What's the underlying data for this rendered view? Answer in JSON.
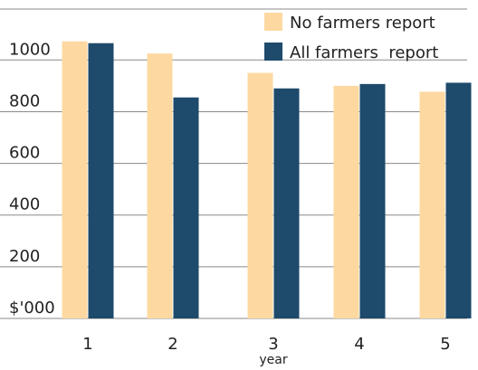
{
  "chart_data": {
    "type": "bar",
    "title": "",
    "xlabel": "year",
    "ylabel": "",
    "ylim": [
      0,
      1200
    ],
    "yticks": [
      0,
      200,
      400,
      600,
      800,
      1000
    ],
    "ytick_labels": [
      "$'000",
      "200",
      "400",
      "600",
      "800",
      "1000"
    ],
    "categories": [
      "1",
      "2",
      "3",
      "4",
      "5"
    ],
    "grid": true,
    "legend_position": "top-right",
    "series": [
      {
        "name": "No farmers report",
        "color": "#fdd9a1",
        "values": [
          1072,
          1025,
          950,
          900,
          877
        ]
      },
      {
        "name": "All farmers  report",
        "color": "#1e4a6b",
        "values": [
          1065,
          855,
          890,
          907,
          912
        ]
      }
    ]
  }
}
